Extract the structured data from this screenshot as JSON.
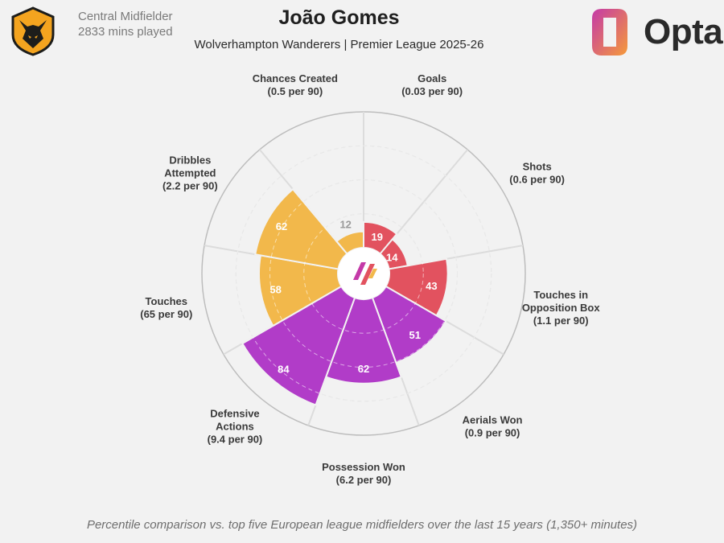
{
  "header": {
    "position": "Central Midfielder",
    "minutes": "2833 mins played",
    "player_name": "João Gomes",
    "team_league": "Wolverhampton Wanderers | Premier League 2025-26",
    "brand": "Opta"
  },
  "footer": {
    "note": "Percentile comparison vs. top five European league midfielders over the last 15 years (1,350+ minutes)"
  },
  "colors": {
    "attacking": "#e2525f",
    "possession": "#f2b84b",
    "defending": "#b13cc8",
    "background": "#f2f2f2",
    "grid": "#d9d9d9"
  },
  "chart_data": {
    "type": "polar-bar",
    "value_range": [
      0,
      100
    ],
    "metrics": [
      {
        "name": [
          "Goals",
          "(0.03 per 90)"
        ],
        "percentile": 19,
        "group": "attacking"
      },
      {
        "name": [
          "Shots",
          "(0.6 per 90)"
        ],
        "percentile": 14,
        "group": "attacking"
      },
      {
        "name": [
          "Touches in",
          "Opposition Box",
          "(1.1 per 90)"
        ],
        "percentile": 43,
        "group": "attacking"
      },
      {
        "name": [
          "Aerials Won",
          "(0.9 per 90)"
        ],
        "percentile": 51,
        "group": "defending"
      },
      {
        "name": [
          "Possession Won",
          "(6.2 per 90)"
        ],
        "percentile": 62,
        "group": "defending"
      },
      {
        "name": [
          "Defensive",
          "Actions",
          "(9.4 per 90)"
        ],
        "percentile": 84,
        "group": "defending"
      },
      {
        "name": [
          "Touches",
          "(65 per 90)"
        ],
        "percentile": 58,
        "group": "possession"
      },
      {
        "name": [
          "Dribbles",
          "Attempted",
          "(2.2 per 90)"
        ],
        "percentile": 62,
        "group": "possession"
      },
      {
        "name": [
          "Chances Created",
          "(0.5 per 90)"
        ],
        "percentile": 12,
        "group": "possession"
      }
    ]
  }
}
